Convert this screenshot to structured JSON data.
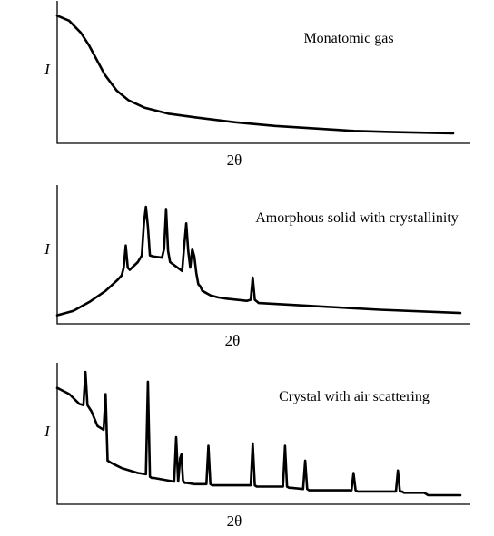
{
  "chart_data": [
    {
      "type": "line",
      "title": "Monatomic gas",
      "xlabel": "2θ",
      "ylabel": "I",
      "grid": false,
      "ticks": false,
      "xlim": [
        0,
        100
      ],
      "ylim": [
        0,
        100
      ],
      "series": [
        {
          "x": [
            0,
            3,
            6,
            8,
            10,
            12,
            15,
            18,
            22,
            28,
            35,
            45,
            55,
            65,
            75,
            85,
            100
          ],
          "y": [
            99,
            95,
            85,
            75,
            63,
            51,
            38,
            30,
            24,
            19,
            16,
            12,
            9,
            7,
            5,
            4,
            3
          ]
        }
      ]
    },
    {
      "type": "line",
      "title": "Amorphous solid with crystallinity",
      "xlabel": "2θ",
      "ylabel": "I",
      "grid": false,
      "ticks": false,
      "xlim": [
        0,
        100
      ],
      "ylim": [
        0,
        100
      ],
      "series": [
        {
          "x": [
            0,
            4,
            8,
            12,
            15,
            16,
            16.5,
            17,
            17.5,
            18,
            20,
            21,
            21.5,
            22,
            22.5,
            23,
            24,
            26,
            26.5,
            27,
            27.5,
            28,
            31,
            31.5,
            32,
            32.5,
            33,
            33.5,
            34,
            34.5,
            35,
            35.5,
            36,
            38,
            40,
            42,
            47,
            48,
            48.5,
            49,
            50,
            60,
            80,
            100
          ],
          "y": [
            2,
            6,
            14,
            24,
            34,
            38,
            45,
            65,
            45,
            43,
            50,
            56,
            85,
            100,
            82,
            56,
            55,
            54,
            62,
            98,
            60,
            50,
            42,
            65,
            85,
            60,
            45,
            62,
            55,
            40,
            30,
            28,
            24,
            20,
            18,
            17,
            15,
            16,
            36,
            16,
            13,
            11,
            7,
            4
          ]
        }
      ]
    },
    {
      "type": "line",
      "title": "Crystal with air scattering",
      "xlabel": "2θ",
      "ylabel": "I",
      "grid": false,
      "ticks": false,
      "xlim": [
        0,
        100
      ],
      "ylim": [
        0,
        100
      ],
      "series": [
        {
          "x": [
            0,
            3,
            5.5,
            6.5,
            7,
            7.5,
            8.5,
            10,
            11.5,
            12,
            12.5,
            13.5,
            16,
            20,
            22,
            22.5,
            23,
            23.5,
            24,
            29,
            29.5,
            30,
            30.5,
            30.8,
            31.2,
            31.6,
            32,
            34,
            37,
            37.5,
            38,
            38.5,
            39,
            48,
            48.5,
            49,
            49.5,
            50,
            56,
            56.5,
            57,
            57.5,
            58,
            61,
            61.5,
            62,
            62.5,
            63,
            73,
            73.5,
            74,
            74.5,
            75,
            84,
            84.5,
            85,
            85.5,
            86,
            91,
            91.5,
            92,
            92.5,
            93,
            100
          ],
          "y": [
            87,
            82,
            74,
            73,
            100,
            73,
            68,
            56,
            53,
            82,
            28,
            26,
            22,
            18,
            17,
            92,
            15,
            14,
            14,
            11,
            47,
            11,
            30,
            33,
            12,
            10,
            10,
            9,
            9,
            40,
            9,
            8,
            8,
            8,
            42,
            8,
            7,
            7,
            7,
            40,
            7,
            6,
            6,
            5,
            28,
            5,
            4,
            4,
            4,
            18,
            4,
            3,
            3,
            3,
            20,
            3,
            3,
            2,
            2,
            1,
            0,
            0,
            0,
            0
          ]
        }
      ]
    }
  ]
}
